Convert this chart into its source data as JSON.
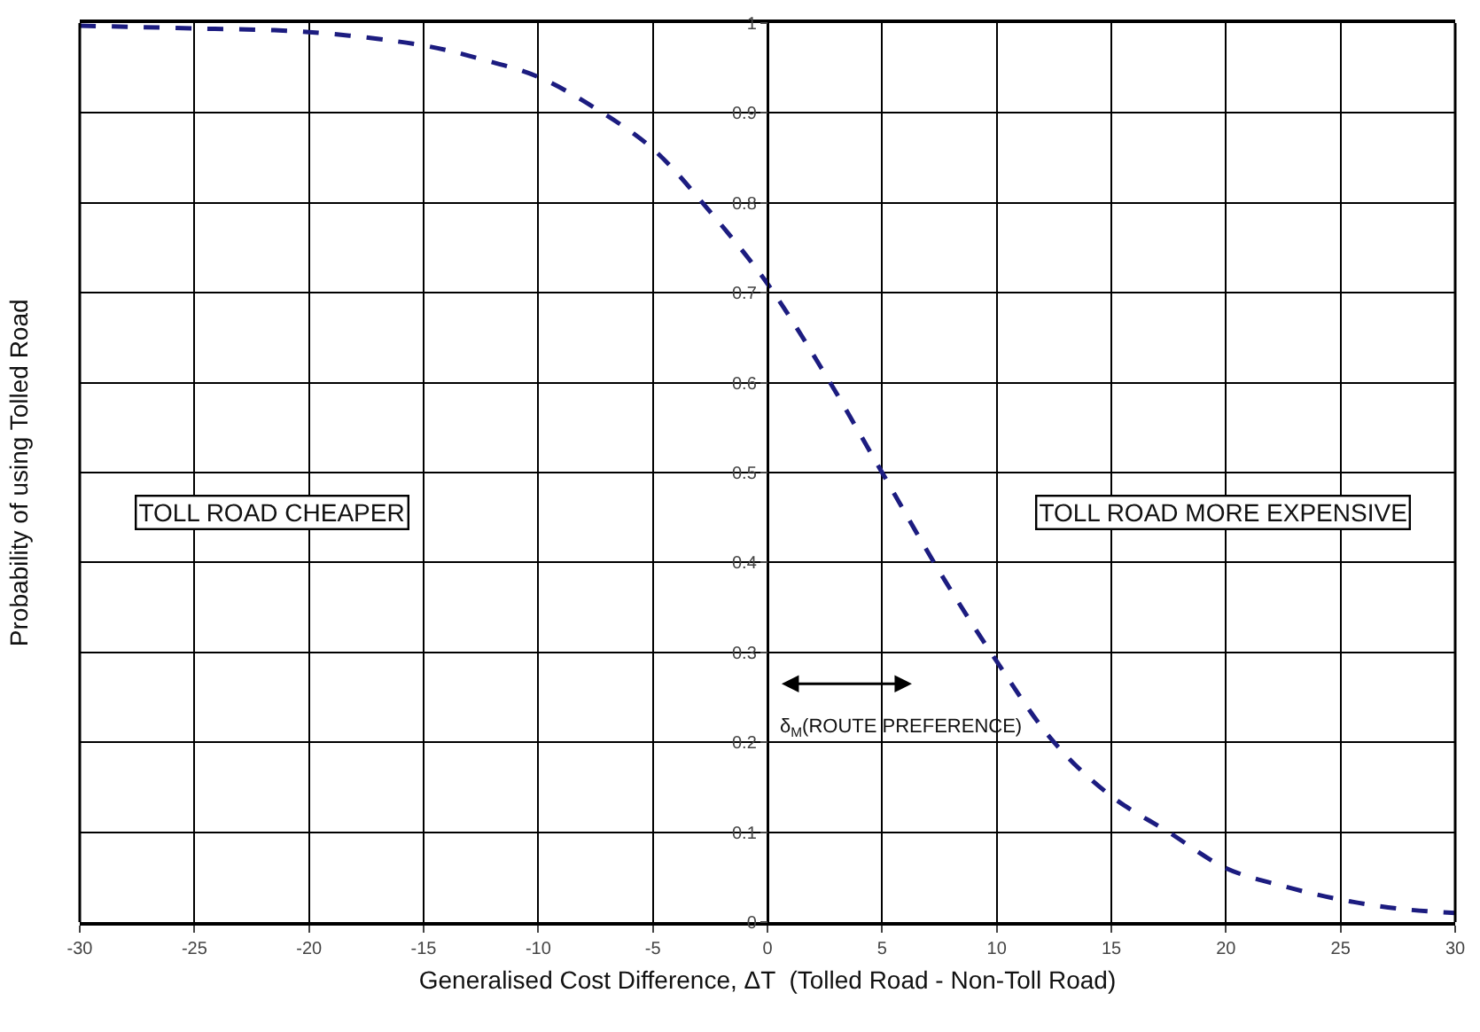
{
  "chart_data": {
    "type": "line",
    "xlabel": "Generalised Cost Difference, ΔT  (Tolled Road - Non-Toll Road)",
    "ylabel": "Probability of using Tolled Road",
    "x": [
      -30,
      -25,
      -20,
      -15,
      -12.5,
      -10,
      -7.5,
      -5,
      -2.5,
      0,
      2.5,
      5,
      7.5,
      10,
      12.5,
      15,
      17.5,
      20,
      22.5,
      25,
      27.5,
      30
    ],
    "series": [
      {
        "color": "#1c1c80",
        "values": [
          0.997,
          0.994,
          0.99,
          0.975,
          0.96,
          0.94,
          0.905,
          0.86,
          0.79,
          0.71,
          0.61,
          0.5,
          0.39,
          0.29,
          0.2,
          0.14,
          0.1,
          0.06,
          0.04,
          0.025,
          0.015,
          0.01
        ]
      }
    ],
    "xlim": [
      -30,
      30
    ],
    "xticks": [
      -30,
      -25,
      -20,
      -15,
      -10,
      -5,
      0,
      5,
      10,
      15,
      20,
      25,
      30
    ],
    "ylim": [
      0,
      1
    ],
    "yticks": [
      0,
      0.1,
      0.2,
      0.3,
      0.4,
      0.5,
      0.6,
      0.7,
      0.8,
      0.9,
      1
    ],
    "annotations": [
      "TOLL ROAD CHEAPER",
      "TOLL ROAD MORE EXPENSIVE",
      "δ$_{M}$(ROUTE PREFERENCE)"
    ],
    "grid": true,
    "legend": false,
    "marker": "none",
    "line_style": "dashed"
  }
}
